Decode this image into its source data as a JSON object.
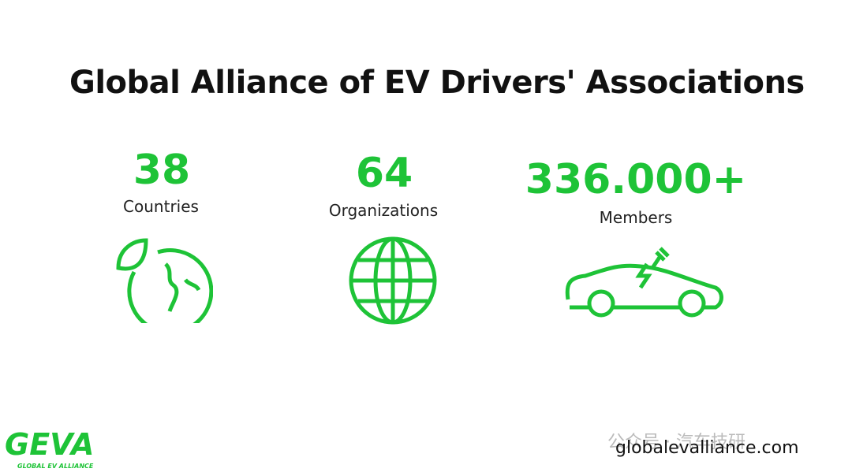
{
  "title": "Global Alliance of EV Drivers' Associations",
  "stats": [
    {
      "value": "38",
      "label": "Countries"
    },
    {
      "value": "64",
      "label": "Organizations"
    },
    {
      "value": "336.000+",
      "label": "Members"
    }
  ],
  "logo": {
    "name": "GEVA",
    "tagline": "GLOBAL EV ALLIANCE"
  },
  "watermark": "公众号 · 汽车技研",
  "website": "globalevalliance.com"
}
